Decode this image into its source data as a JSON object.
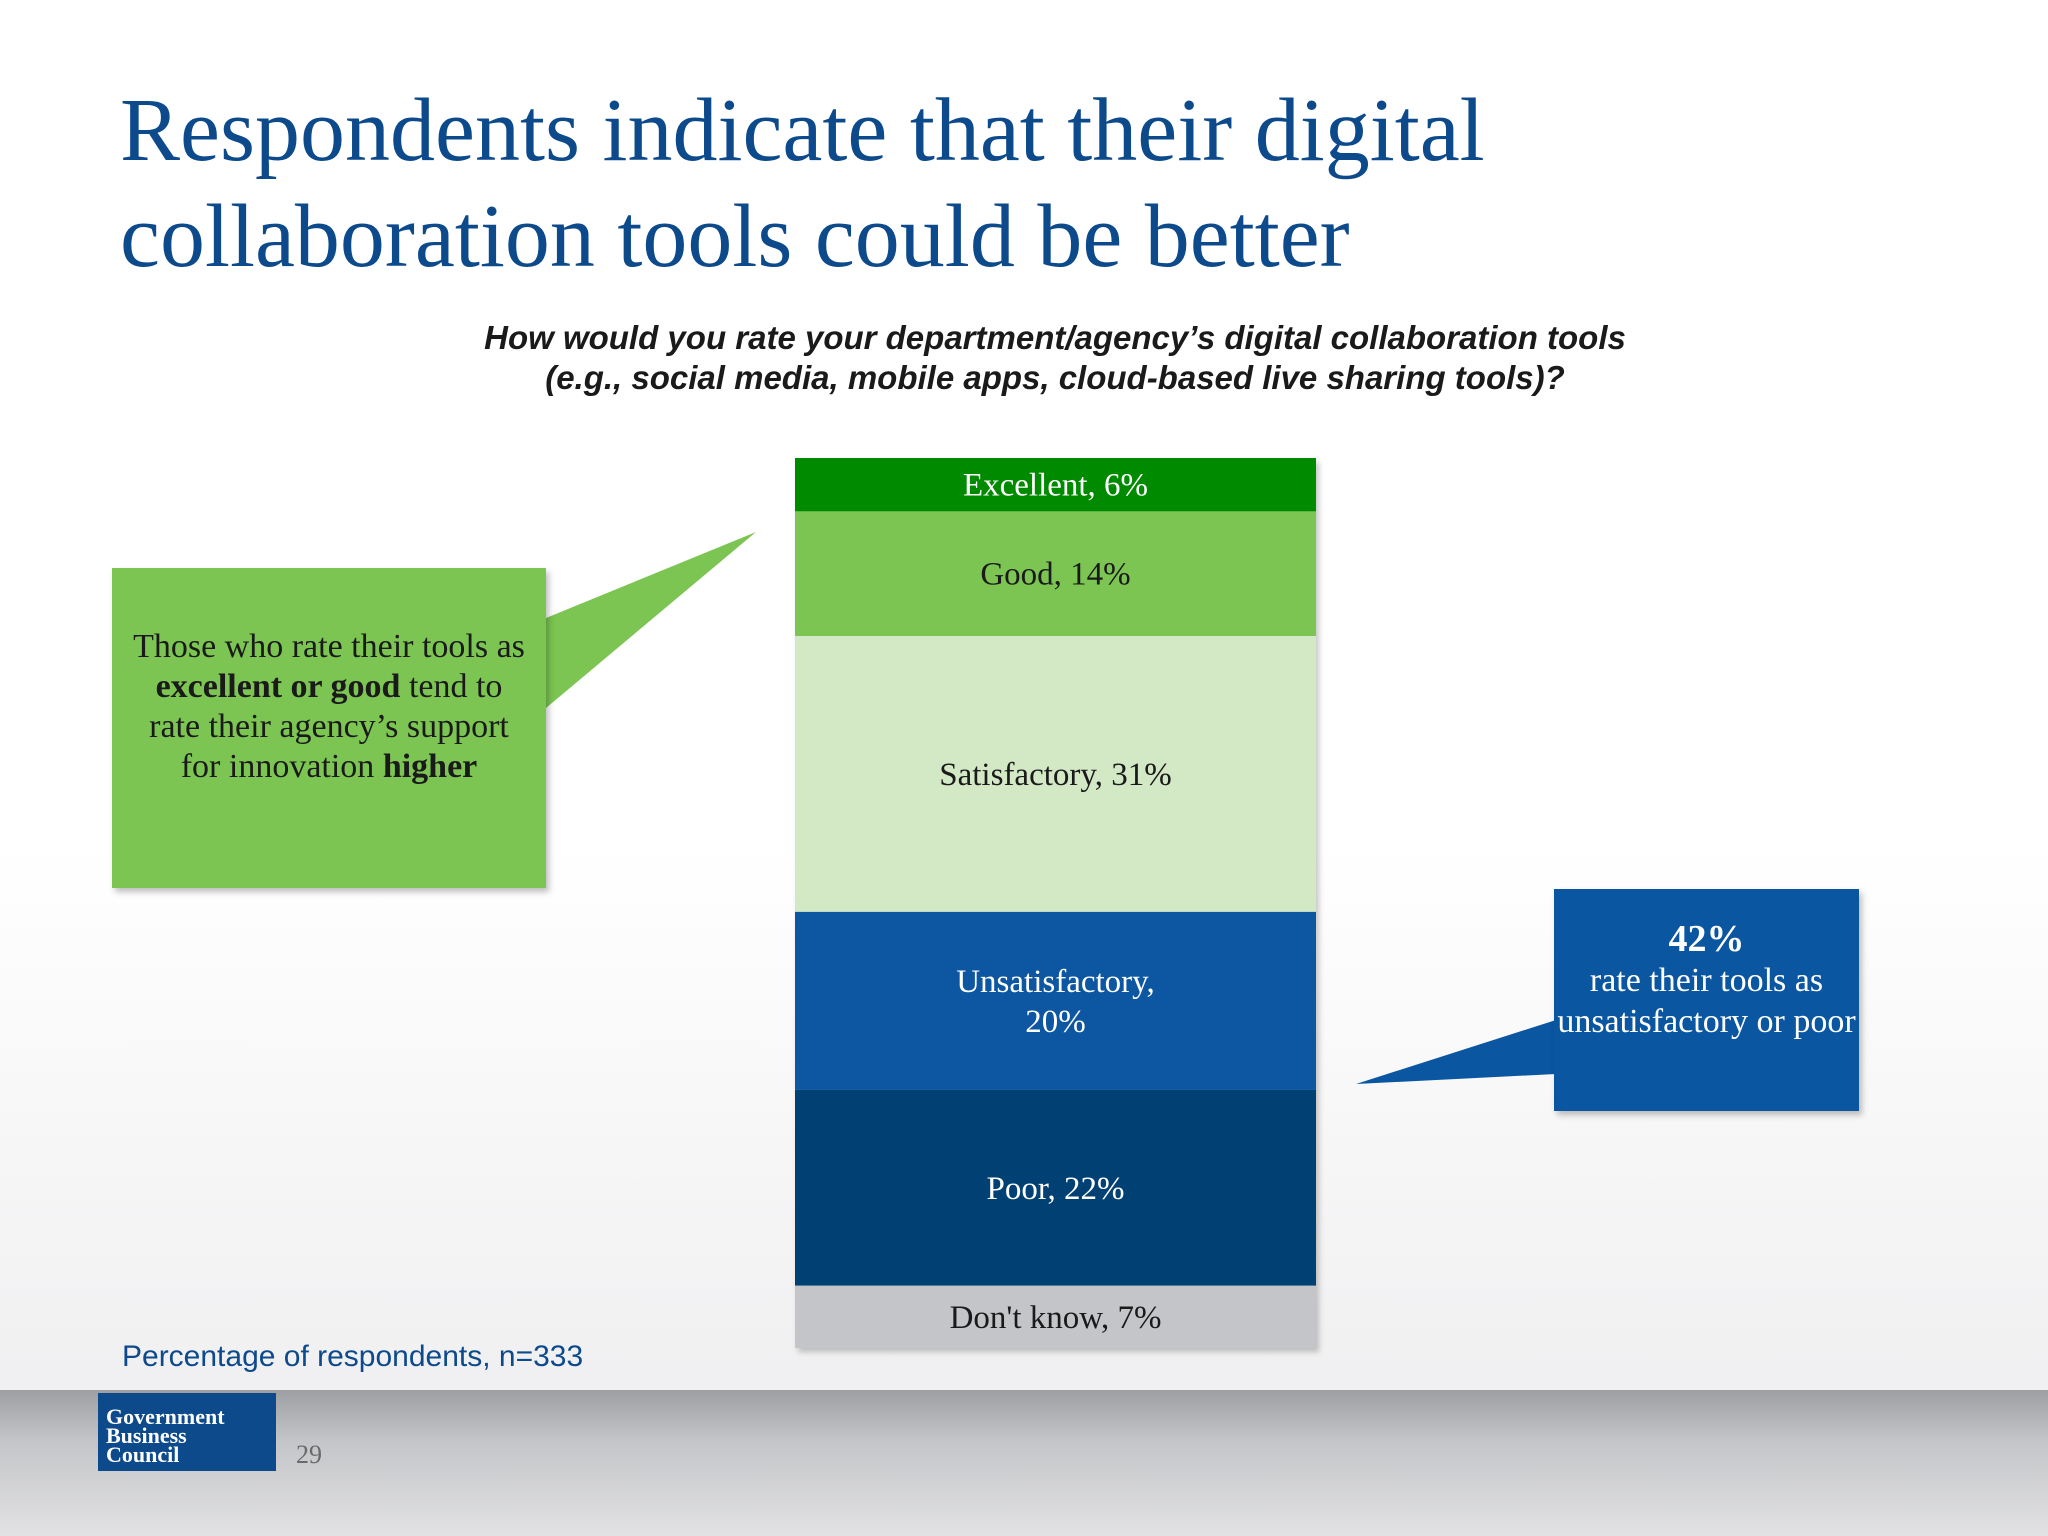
{
  "slide": {
    "title_line1": "Respondents indicate that their digital",
    "title_line2": "collaboration tools could be better",
    "question_line1": "How would you rate your department/agency’s digital collaboration tools",
    "question_line2": "(e.g., social media, mobile apps, cloud-based live sharing tools)?",
    "note": "Percentage of respondents, n=333",
    "page_number": "29"
  },
  "callout_left": {
    "text1": "Those who rate their tools as ",
    "bold1": "excellent or good",
    "text2": " tend to rate their agency’s support for innovation ",
    "bold2": "higher"
  },
  "callout_right": {
    "big": "42%",
    "text": "rate their tools as unsatisfactory or poor"
  },
  "logo": {
    "line1": "Government",
    "line2": "Business",
    "line3": "Council"
  },
  "colors": {
    "title": "#0d4a8c",
    "excellent": "#008a00",
    "good": "#7dc552",
    "satisfactory": "#d3e8c5",
    "unsatisfactory": "#0a56a1",
    "poor": "#003f73",
    "dont_know": "#c4c5c8"
  },
  "chart_data": {
    "type": "bar",
    "stacked": true,
    "unit": "%",
    "series": [
      {
        "category": "Excellent",
        "value": 6,
        "label": "Excellent, 6%",
        "color": "#008a00",
        "text_color": "#ffffff"
      },
      {
        "category": "Good",
        "value": 14,
        "label": "Good, 14%",
        "color": "#7dc552",
        "text_color": "#1a1a1a"
      },
      {
        "category": "Satisfactory",
        "value": 31,
        "label": "Satisfactory, 31%",
        "color": "#d3e8c5",
        "text_color": "#1a1a1a"
      },
      {
        "category": "Unsatisfactory",
        "value": 20,
        "label": "Unsatisfactory,\n20%",
        "color": "#0a56a1",
        "text_color": "#ffffff"
      },
      {
        "category": "Poor",
        "value": 22,
        "label": "Poor, 22%",
        "color": "#003f73",
        "text_color": "#ffffff"
      },
      {
        "category": "Don't know",
        "value": 7,
        "label": "Don't know, 7%",
        "color": "#c4c5c8",
        "text_color": "#1a1a1a"
      }
    ]
  }
}
